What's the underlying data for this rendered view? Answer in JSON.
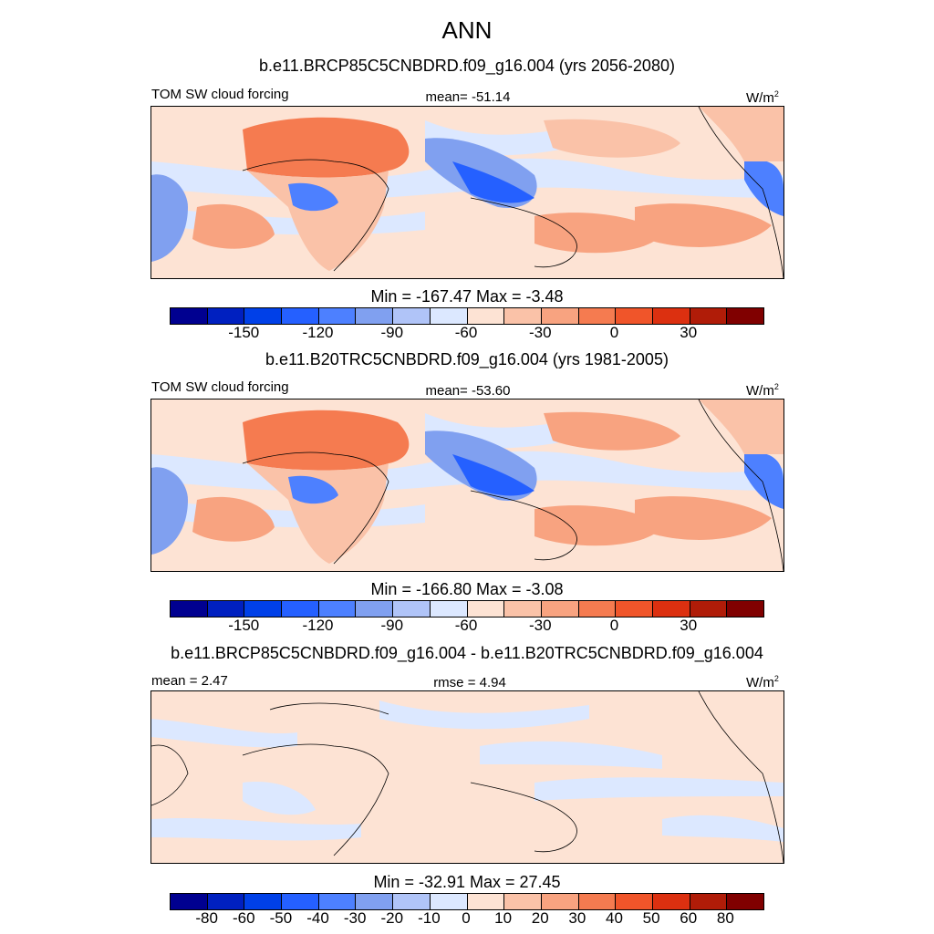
{
  "title": "ANN",
  "colors": [
    "#000090",
    "#0020c0",
    "#0040e8",
    "#2560ff",
    "#4d80ff",
    "#80a0f0",
    "#b0c4f8",
    "#dce8ff",
    "#fde3d4",
    "#fac2a8",
    "#f8a380",
    "#f57b50",
    "#f0552a",
    "#dc3010",
    "#b01c08",
    "#800000"
  ],
  "panels": [
    {
      "subtitle": "b.e11.BRCP85C5CNBDRD.f09_g16.004 (yrs 2056-2080)",
      "left_label": "TOM SW cloud forcing",
      "center_label": "mean= -51.14",
      "units": "W/m",
      "units_sup": "2",
      "minmax": "Min = -167.47 Max =  -3.48",
      "ticks": [
        "-150",
        "-120",
        "-90",
        "-60",
        "-30",
        "0",
        "30"
      ]
    },
    {
      "subtitle": "b.e11.B20TRC5CNBDRD.f09_g16.004 (yrs 1981-2005)",
      "left_label": "TOM SW cloud forcing",
      "center_label": "mean= -53.60",
      "units": "W/m",
      "units_sup": "2",
      "minmax": "Min = -166.80 Max =  -3.08",
      "ticks": [
        "-150",
        "-120",
        "-90",
        "-60",
        "-30",
        "0",
        "30"
      ]
    },
    {
      "subtitle": "b.e11.BRCP85C5CNBDRD.f09_g16.004 - b.e11.B20TRC5CNBDRD.f09_g16.004",
      "left_label": "mean =   2.47",
      "center_label": "rmse =   4.94",
      "units": "W/m",
      "units_sup": "2",
      "minmax": "Min = -32.91 Max =  27.45",
      "ticks": [
        "-80",
        "-60",
        "-50",
        "-40",
        "-30",
        "-20",
        "-10",
        "0",
        "10",
        "20",
        "30",
        "40",
        "50",
        "60",
        "80"
      ]
    }
  ]
}
